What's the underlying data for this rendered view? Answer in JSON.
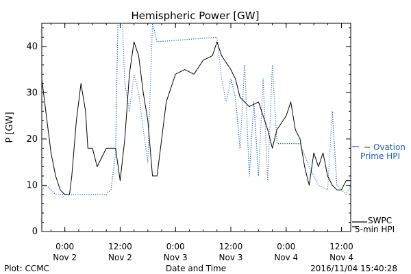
{
  "chart_data": {
    "type": "line",
    "title": "Hemispheric Power [GW]",
    "ylabel": "P [GW]",
    "xlabel": "Date and Time",
    "ylim": [
      0,
      45
    ],
    "xlim": [
      "2016-11-01 19:00",
      "2016-11-04 14:00"
    ],
    "y_ticks": [
      0,
      10,
      20,
      30,
      40
    ],
    "x_ticks": [
      {
        "time": "2016-11-02 00:00",
        "line1": "0:00",
        "line2": "Nov 2"
      },
      {
        "time": "2016-11-02 12:00",
        "line1": "12:00",
        "line2": "Nov 2"
      },
      {
        "time": "2016-11-03 00:00",
        "line1": "0:00",
        "line2": "Nov 3"
      },
      {
        "time": "2016-11-03 12:00",
        "line1": "12:00",
        "line2": "Nov 3"
      },
      {
        "time": "2016-11-04 00:00",
        "line1": "0:00",
        "line2": "Nov 4"
      },
      {
        "time": "2016-11-04 12:00",
        "line1": "12:00",
        "line2": "Nov 4"
      }
    ],
    "grid": false,
    "series": [
      {
        "name": "Ovation Prime HPI",
        "legend_line1": "Ovation",
        "legend_line2": "Prime HPI",
        "color": "#1f5fbf",
        "style": "dotted",
        "points": [
          [
            "2016-11-01 19:00",
            9
          ],
          [
            "2016-11-01 20:00",
            10
          ],
          [
            "2016-11-01 21:00",
            9
          ],
          [
            "2016-11-01 22:00",
            8
          ],
          [
            "2016-11-02 06:00",
            8
          ],
          [
            "2016-11-02 09:00",
            8
          ],
          [
            "2016-11-02 10:00",
            9
          ],
          [
            "2016-11-02 11:00",
            17
          ],
          [
            "2016-11-02 11:30",
            45
          ],
          [
            "2016-11-02 12:30",
            45
          ],
          [
            "2016-11-02 13:00",
            32
          ],
          [
            "2016-11-02 14:00",
            26
          ],
          [
            "2016-11-02 15:00",
            34
          ],
          [
            "2016-11-02 16:00",
            30
          ],
          [
            "2016-11-02 17:00",
            22
          ],
          [
            "2016-11-02 18:00",
            15
          ],
          [
            "2016-11-02 19:00",
            45
          ],
          [
            "2016-11-02 20:00",
            41
          ],
          [
            "2016-11-03 09:00",
            42
          ],
          [
            "2016-11-03 10:00",
            33
          ],
          [
            "2016-11-03 11:00",
            28
          ],
          [
            "2016-11-03 12:00",
            33
          ],
          [
            "2016-11-03 13:00",
            29
          ],
          [
            "2016-11-03 14:00",
            18
          ],
          [
            "2016-11-03 15:00",
            36
          ],
          [
            "2016-11-03 16:00",
            12
          ],
          [
            "2016-11-03 17:00",
            28
          ],
          [
            "2016-11-03 18:00",
            12
          ],
          [
            "2016-11-03 19:00",
            33
          ],
          [
            "2016-11-03 20:00",
            11
          ],
          [
            "2016-11-03 21:00",
            36
          ],
          [
            "2016-11-03 22:00",
            19
          ],
          [
            "2016-11-04 03:00",
            19
          ],
          [
            "2016-11-04 05:00",
            14
          ],
          [
            "2016-11-04 07:00",
            10
          ],
          [
            "2016-11-04 09:00",
            9
          ],
          [
            "2016-11-04 10:00",
            26
          ],
          [
            "2016-11-04 11:00",
            10
          ],
          [
            "2016-11-04 12:00",
            9
          ],
          [
            "2016-11-04 13:00",
            8
          ],
          [
            "2016-11-04 14:00",
            10
          ]
        ]
      },
      {
        "name": "SWPC 5-min HPI",
        "legend_line1": "SWPC",
        "legend_line2": "5-min HPI",
        "color": "#000000",
        "style": "solid",
        "points": [
          [
            "2016-11-01 19:00",
            33
          ],
          [
            "2016-11-01 20:00",
            25
          ],
          [
            "2016-11-01 21:00",
            17
          ],
          [
            "2016-11-01 22:00",
            12
          ],
          [
            "2016-11-01 23:00",
            9
          ],
          [
            "2016-11-02 00:00",
            8
          ],
          [
            "2016-11-02 01:00",
            8
          ],
          [
            "2016-11-02 01:30",
            12
          ],
          [
            "2016-11-02 02:30",
            24
          ],
          [
            "2016-11-02 03:30",
            32
          ],
          [
            "2016-11-02 04:30",
            26
          ],
          [
            "2016-11-02 05:00",
            18
          ],
          [
            "2016-11-02 06:00",
            18
          ],
          [
            "2016-11-02 07:00",
            14
          ],
          [
            "2016-11-02 08:00",
            16
          ],
          [
            "2016-11-02 09:00",
            18
          ],
          [
            "2016-11-02 10:00",
            18
          ],
          [
            "2016-11-02 11:00",
            18
          ],
          [
            "2016-11-02 12:00",
            11
          ],
          [
            "2016-11-02 13:00",
            20
          ],
          [
            "2016-11-02 14:00",
            34
          ],
          [
            "2016-11-02 15:00",
            41
          ],
          [
            "2016-11-02 16:00",
            38
          ],
          [
            "2016-11-02 17:00",
            30
          ],
          [
            "2016-11-02 18:00",
            24
          ],
          [
            "2016-11-02 19:00",
            12
          ],
          [
            "2016-11-02 20:00",
            12
          ],
          [
            "2016-11-02 21:00",
            20
          ],
          [
            "2016-11-02 22:00",
            28
          ],
          [
            "2016-11-03 00:00",
            34
          ],
          [
            "2016-11-03 02:00",
            35
          ],
          [
            "2016-11-03 04:00",
            34
          ],
          [
            "2016-11-03 06:00",
            37
          ],
          [
            "2016-11-03 08:00",
            38
          ],
          [
            "2016-11-03 09:00",
            41
          ],
          [
            "2016-11-03 10:00",
            38
          ],
          [
            "2016-11-03 12:00",
            35
          ],
          [
            "2016-11-03 13:00",
            33
          ],
          [
            "2016-11-03 14:00",
            29
          ],
          [
            "2016-11-03 16:00",
            27
          ],
          [
            "2016-11-03 18:00",
            28
          ],
          [
            "2016-11-03 20:00",
            22
          ],
          [
            "2016-11-03 21:00",
            18
          ],
          [
            "2016-11-03 22:00",
            22
          ],
          [
            "2016-11-04 00:00",
            25
          ],
          [
            "2016-11-04 01:00",
            28
          ],
          [
            "2016-11-04 02:00",
            22
          ],
          [
            "2016-11-04 03:00",
            20
          ],
          [
            "2016-11-04 04:00",
            14
          ],
          [
            "2016-11-04 05:00",
            10
          ],
          [
            "2016-11-04 06:00",
            17
          ],
          [
            "2016-11-04 07:00",
            14
          ],
          [
            "2016-11-04 08:00",
            17
          ],
          [
            "2016-11-04 09:00",
            12
          ],
          [
            "2016-11-04 10:00",
            10
          ],
          [
            "2016-11-04 11:00",
            9
          ],
          [
            "2016-11-04 12:00",
            9
          ],
          [
            "2016-11-04 13:00",
            11
          ],
          [
            "2016-11-04 14:00",
            11
          ]
        ]
      }
    ]
  },
  "footer": {
    "left": "Plot: CCMC",
    "right": "2016/11/04 15:40:28"
  }
}
